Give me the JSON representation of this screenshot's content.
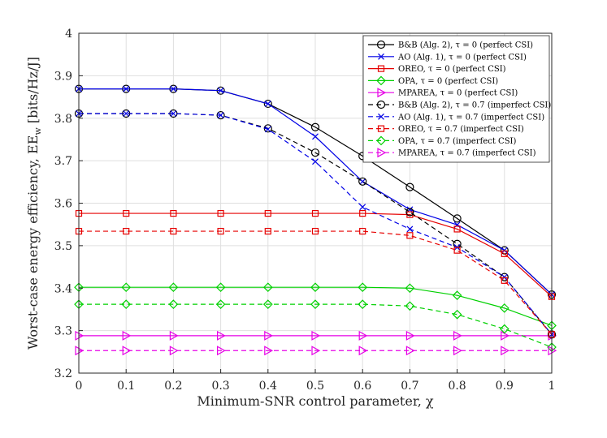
{
  "chart_data": {
    "type": "line",
    "title": "",
    "xlabel": "Minimum-SNR control parameter, χ",
    "ylabel": "Worst-case energy efficiency, EE_w  [bits/Hz/J]",
    "ylabel_parts": {
      "main": "Worst-case energy efficiency, EE",
      "sub": "w",
      "unit": "  [bits/Hz/J]"
    },
    "xlim": [
      0,
      1
    ],
    "ylim": [
      3.2,
      4.0
    ],
    "xticks": [
      "0",
      "0.1",
      "0.2",
      "0.3",
      "0.4",
      "0.5",
      "0.6",
      "0.7",
      "0.8",
      "0.9",
      "1"
    ],
    "yticks": [
      "3.2",
      "3.3",
      "3.4",
      "3.5",
      "3.6",
      "3.7",
      "3.8",
      "3.9",
      "4"
    ],
    "grid": true,
    "legend_position": "top-right",
    "x": [
      0,
      0.1,
      0.2,
      0.3,
      0.4,
      0.5,
      0.6,
      0.7,
      0.8,
      0.9,
      1.0
    ],
    "series": [
      {
        "name": "B&B (Alg. 2), τ = 0 (perfect CSI)",
        "color": "#000000",
        "marker": "circle",
        "dash": "solid",
        "values": [
          3.869,
          3.869,
          3.869,
          3.865,
          3.834,
          3.779,
          3.711,
          3.638,
          3.564,
          3.489,
          3.385
        ]
      },
      {
        "name": "AO (Alg. 1), τ = 0 (perfect CSI)",
        "color": "#0000e6",
        "marker": "x",
        "dash": "solid",
        "values": [
          3.869,
          3.869,
          3.869,
          3.865,
          3.834,
          3.757,
          3.651,
          3.585,
          3.549,
          3.489,
          3.385
        ]
      },
      {
        "name": "OREO, τ = 0 (perfect CSI)",
        "color": "#e60000",
        "marker": "square",
        "dash": "solid",
        "values": [
          3.576,
          3.576,
          3.576,
          3.576,
          3.576,
          3.576,
          3.576,
          3.573,
          3.539,
          3.481,
          3.38
        ]
      },
      {
        "name": "OPA, τ = 0 (perfect CSI)",
        "color": "#00d000",
        "marker": "diamond",
        "dash": "solid",
        "values": [
          3.402,
          3.402,
          3.402,
          3.402,
          3.402,
          3.402,
          3.402,
          3.4,
          3.383,
          3.353,
          3.312
        ]
      },
      {
        "name": "MPAREA, τ = 0 (perfect CSI)",
        "color": "#e600e6",
        "marker": "triangle-right",
        "dash": "solid",
        "values": [
          3.288,
          3.288,
          3.288,
          3.288,
          3.288,
          3.288,
          3.288,
          3.288,
          3.288,
          3.288,
          3.288
        ]
      },
      {
        "name": "B&B (Alg. 2), τ = 0.7 (imperfect CSI)",
        "color": "#000000",
        "marker": "circle",
        "dash": "dashed",
        "values": [
          3.811,
          3.811,
          3.811,
          3.807,
          3.776,
          3.719,
          3.651,
          3.579,
          3.504,
          3.426,
          3.291
        ]
      },
      {
        "name": "AO (Alg. 1), τ = 0.7 (imperfect CSI)",
        "color": "#0000e6",
        "marker": "x",
        "dash": "dashed",
        "values": [
          3.811,
          3.811,
          3.811,
          3.807,
          3.774,
          3.698,
          3.591,
          3.539,
          3.496,
          3.426,
          3.291
        ]
      },
      {
        "name": "OREO, τ = 0.7 (imperfect CSI)",
        "color": "#e60000",
        "marker": "square",
        "dash": "dashed",
        "values": [
          3.534,
          3.534,
          3.534,
          3.534,
          3.534,
          3.534,
          3.534,
          3.524,
          3.489,
          3.418,
          3.291
        ]
      },
      {
        "name": "OPA, τ = 0.7 (imperfect CSI)",
        "color": "#00d000",
        "marker": "diamond",
        "dash": "dashed",
        "values": [
          3.362,
          3.362,
          3.362,
          3.362,
          3.362,
          3.362,
          3.362,
          3.358,
          3.338,
          3.304,
          3.261
        ]
      },
      {
        "name": "MPAREA, τ = 0.7 (imperfect CSI)",
        "color": "#e600e6",
        "marker": "triangle-right",
        "dash": "dashed",
        "values": [
          3.253,
          3.253,
          3.253,
          3.253,
          3.253,
          3.253,
          3.253,
          3.253,
          3.253,
          3.253,
          3.253
        ]
      }
    ]
  }
}
